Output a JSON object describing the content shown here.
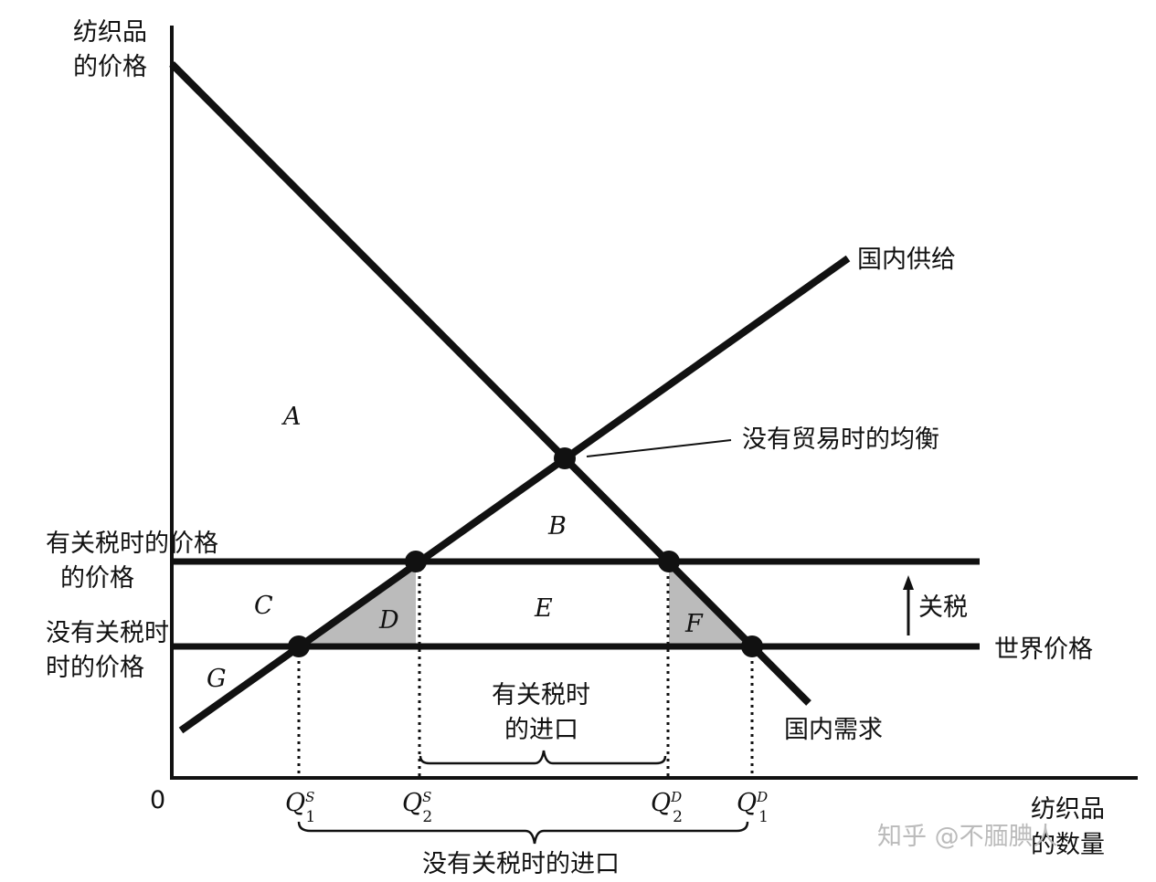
{
  "axes": {
    "y_label": [
      "纺织品",
      "的价格"
    ],
    "x_label": [
      "纺织品",
      "的数量"
    ],
    "origin": "0"
  },
  "curves": {
    "supply": "国内供给",
    "demand": "国内需求"
  },
  "annotations": {
    "equilibrium": "没有贸易时的均衡",
    "tariff": "关税",
    "world_price": "世界价格",
    "price_with_tariff": [
      "有关税时的价格",
      "的价格"
    ],
    "price_without_tariff": [
      "没有关税时",
      "时的价格"
    ],
    "imports_with_tariff": [
      "有关税时",
      "的进口"
    ],
    "imports_without_tariff": "没有关税时的进口"
  },
  "areas": [
    "A",
    "B",
    "C",
    "D",
    "E",
    "F",
    "G"
  ],
  "quantities": [
    {
      "base": "Q",
      "sub": "1",
      "sup": "S"
    },
    {
      "base": "Q",
      "sub": "2",
      "sup": "S"
    },
    {
      "base": "Q",
      "sub": "2",
      "sup": "D"
    },
    {
      "base": "Q",
      "sub": "1",
      "sup": "D"
    }
  ],
  "watermark": "知乎 @不腼腆人"
}
